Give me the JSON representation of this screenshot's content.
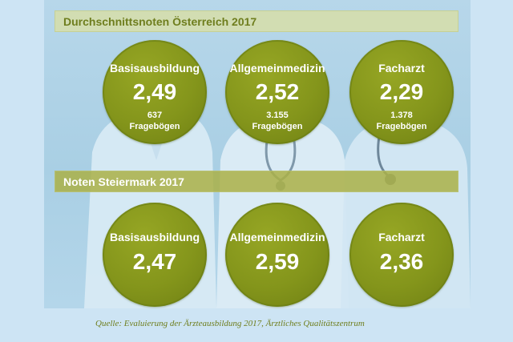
{
  "sections": [
    {
      "title": "Durchschnittsnoten Österreich 2017",
      "items": [
        {
          "label": "Basisausbildung",
          "value": "2,49",
          "count": "637",
          "count_label": "Fragebögen"
        },
        {
          "label": "Allgemeinmedizin",
          "value": "2,52",
          "count": "3.155",
          "count_label": "Fragebögen"
        },
        {
          "label": "Facharzt",
          "value": "2,29",
          "count": "1.378",
          "count_label": "Fragebögen"
        }
      ]
    },
    {
      "title": "Noten Steiermark 2017",
      "items": [
        {
          "label": "Basisausbildung",
          "value": "2,47"
        },
        {
          "label": "Allgemeinmedizin",
          "value": "2,59"
        },
        {
          "label": "Facharzt",
          "value": "2,36"
        }
      ]
    }
  ],
  "source": "Quelle: Evaluierung der Ärzteausbildung 2017, Ärztliches Qualitätszentrum",
  "colors": {
    "accent": "#849519",
    "title_text": "#6f7e1e",
    "background": "#cde4f4"
  }
}
